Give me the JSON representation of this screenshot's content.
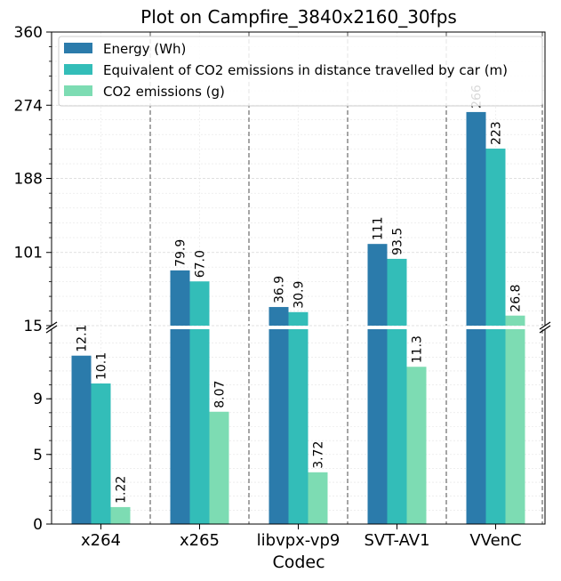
{
  "chart_data": {
    "type": "bar",
    "title": "Plot on Campfire_3840x2160_30fps",
    "xlabel": "Codec",
    "ylabel": "",
    "categories": [
      "x264",
      "x265",
      "libvpx-vp9",
      "SVT-AV1",
      "VVenC"
    ],
    "series": [
      {
        "name": "Energy (Wh)",
        "values": [
          12.1,
          79.9,
          36.9,
          111,
          266
        ],
        "labels": [
          "12.1",
          "79.9",
          "36.9",
          "111",
          "266"
        ],
        "color": "#2b7bab"
      },
      {
        "name": "Equivalent of CO2 emissions in distance travelled by car (m)",
        "values": [
          10.1,
          67.0,
          30.9,
          93.5,
          223
        ],
        "labels": [
          "10.1",
          "67.0",
          "30.9",
          "93.5",
          "223"
        ],
        "color": "#33bdb8"
      },
      {
        "name": "CO2 emissions (g)",
        "values": [
          1.22,
          8.07,
          3.72,
          11.3,
          26.8
        ],
        "labels": [
          "1.22",
          "8.07",
          "3.72",
          "11.3",
          "26.8"
        ],
        "color": "#7ddcb3"
      }
    ],
    "broken_axis": true,
    "lower_axis": {
      "ylim": [
        0,
        14
      ],
      "ticks": [
        "0",
        "5",
        "9"
      ]
    },
    "upper_axis": {
      "ylim": [
        15,
        360
      ],
      "ticks": [
        "15",
        "101",
        "188",
        "274",
        "360"
      ]
    },
    "grid": true,
    "legend_position": "top-left"
  }
}
